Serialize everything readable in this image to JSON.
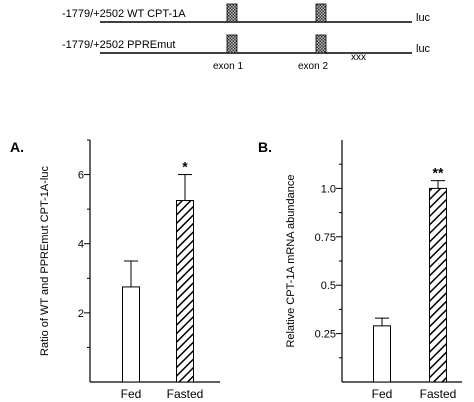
{
  "diagram": {
    "construct_wt": "-1779/+2502 WT CPT-1A",
    "construct_mut": "-1779/+2502 PPREmut",
    "luc_label_wt": "luc",
    "luc_label_mut": "luc",
    "mutation_mark": "xxx",
    "exon1": "exon 1",
    "exon2": "exon 2"
  },
  "chart_data": [
    {
      "type": "bar",
      "panel": "A.",
      "categories": [
        "Fed",
        "Fasted"
      ],
      "values": [
        2.75,
        5.25
      ],
      "errors": [
        0.75,
        0.75
      ],
      "significance": [
        "",
        "*"
      ],
      "fills": [
        "open",
        "hatched"
      ],
      "ylabel": "Ratio of WT and PPREmut CPT-1A-luc",
      "ylim": [
        0,
        7
      ],
      "yticks": [
        2,
        4,
        6
      ],
      "yticklabels": [
        "2",
        "4",
        "6"
      ]
    },
    {
      "type": "bar",
      "panel": "B.",
      "categories": [
        "Fed",
        "Fasted"
      ],
      "values": [
        0.29,
        1.0
      ],
      "errors": [
        0.04,
        0.04
      ],
      "significance": [
        "",
        "**"
      ],
      "fills": [
        "open",
        "hatched"
      ],
      "ylabel": "Relative CPT-1A mRNA abundance",
      "ylim": [
        0,
        1.25
      ],
      "yticks": [
        0.25,
        0.5,
        0.75,
        1.0
      ],
      "yticklabels": [
        "0.25",
        "0.5",
        "0.75",
        "1.0"
      ]
    }
  ]
}
